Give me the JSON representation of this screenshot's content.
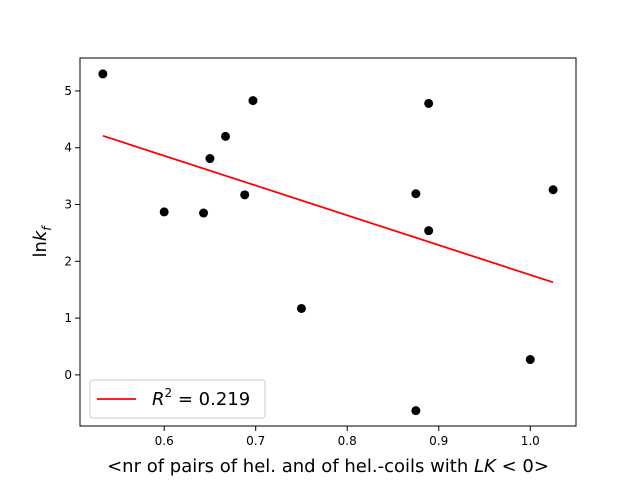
{
  "chart_data": {
    "type": "scatter",
    "xlabel": "<nr of pairs of hel. and of hel.-coils with LK < 0>",
    "xlabel_parts": {
      "pre": "<nr of pairs of hel. and of hel.-coils with ",
      "math": "LK",
      "post": " < 0>"
    },
    "ylabel": "ln k_f",
    "ylabel_parts": {
      "base": "ln",
      "var": "k",
      "sub": "f"
    },
    "xlim": [
      0.508,
      1.05
    ],
    "ylim": [
      -0.9,
      5.58
    ],
    "xticks": [
      0.6,
      0.7,
      0.8,
      0.9,
      1.0
    ],
    "xtick_labels": [
      "0.6",
      "0.7",
      "0.8",
      "0.9",
      "1.0"
    ],
    "yticks": [
      0,
      1,
      2,
      3,
      4,
      5
    ],
    "ytick_labels": [
      "0",
      "1",
      "2",
      "3",
      "4",
      "5"
    ],
    "grid": false,
    "legend_placement": "lower-left",
    "point_color": "#000000",
    "fit_color": "#ff0000",
    "points": [
      {
        "x": 0.533,
        "y": 5.3
      },
      {
        "x": 0.6,
        "y": 2.87
      },
      {
        "x": 0.643,
        "y": 2.85
      },
      {
        "x": 0.65,
        "y": 3.81
      },
      {
        "x": 0.667,
        "y": 4.2
      },
      {
        "x": 0.688,
        "y": 3.17
      },
      {
        "x": 0.697,
        "y": 4.83
      },
      {
        "x": 0.75,
        "y": 1.17
      },
      {
        "x": 0.875,
        "y": 3.19
      },
      {
        "x": 0.875,
        "y": -0.63
      },
      {
        "x": 0.889,
        "y": 4.78
      },
      {
        "x": 0.889,
        "y": 2.54
      },
      {
        "x": 1.0,
        "y": 0.27
      },
      {
        "x": 1.025,
        "y": 3.26
      }
    ],
    "fit_line": {
      "x": [
        0.533,
        1.025
      ],
      "y": [
        4.21,
        1.63
      ],
      "label": "R^2 = 0.219",
      "label_parts": {
        "r": "R",
        "sup": "2",
        "eq": " = 0.219"
      }
    }
  }
}
